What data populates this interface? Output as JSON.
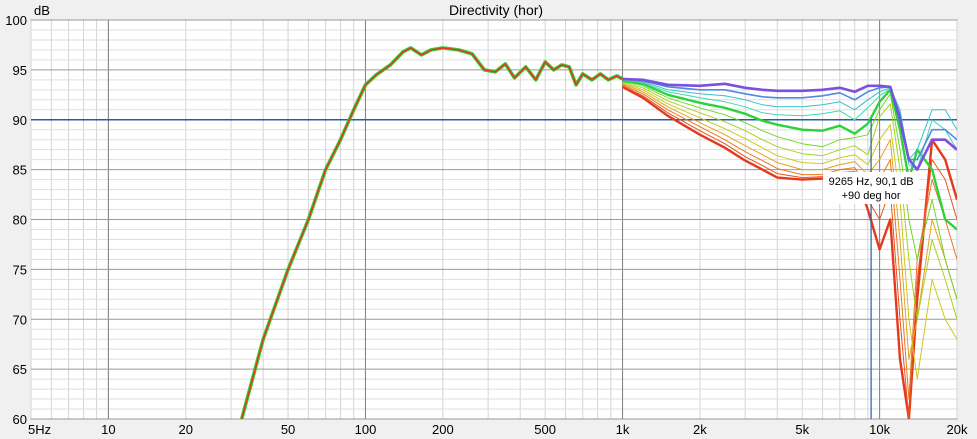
{
  "chart_data": {
    "type": "line",
    "title": "Directivity (hor)",
    "ylabel": "dB",
    "xscale": "log",
    "xlim": [
      5,
      20000
    ],
    "ylim": [
      60,
      100
    ],
    "grid": true,
    "x_tick_labels": [
      {
        "x": 5,
        "label": "5Hz"
      },
      {
        "x": 10,
        "label": "10"
      },
      {
        "x": 20,
        "label": "20"
      },
      {
        "x": 50,
        "label": "50"
      },
      {
        "x": 100,
        "label": "100"
      },
      {
        "x": 200,
        "label": "200"
      },
      {
        "x": 500,
        "label": "500"
      },
      {
        "x": 1000,
        "label": "1k"
      },
      {
        "x": 2000,
        "label": "2k"
      },
      {
        "x": 5000,
        "label": "5k"
      },
      {
        "x": 10000,
        "label": "10k"
      },
      {
        "x": 20000,
        "label": "20k"
      }
    ],
    "y_ticks": [
      60,
      65,
      70,
      75,
      80,
      85,
      90,
      95,
      100
    ],
    "reference_line_y": 90,
    "cursor": {
      "frequency_hz": 9265,
      "level_db": 90.1,
      "label_line1": "9265 Hz, 90,1 dB",
      "label_line2": "+90 deg hor"
    },
    "base_curve": {
      "x": [
        33,
        40,
        50,
        60,
        70,
        80,
        90,
        100,
        110,
        125,
        140,
        150,
        165,
        180,
        200,
        230,
        260,
        290,
        320,
        350,
        380,
        420,
        460,
        500,
        540,
        580,
        620,
        660,
        700,
        760,
        820,
        880,
        950,
        1000
      ],
      "y": [
        60,
        68,
        75,
        80,
        85,
        88,
        91,
        93.5,
        94.5,
        95.5,
        96.8,
        97.2,
        96.5,
        97,
        97.2,
        97,
        96.6,
        95,
        94.8,
        95.6,
        94.2,
        95.3,
        94.0,
        95.8,
        95.0,
        95.5,
        95.3,
        93.5,
        94.6,
        94.0,
        94.6,
        94.0,
        94.4,
        94.1
      ]
    },
    "hf_x": [
      1000,
      1200,
      1500,
      2000,
      2500,
      3000,
      3500,
      4000,
      5000,
      6000,
      7000,
      8000,
      9000,
      10000,
      11000,
      12000,
      13000,
      14000,
      16000,
      18000,
      20000
    ],
    "series": [
      {
        "color": "#7b4fe0",
        "width": 2.6,
        "y": [
          94.1,
          94.0,
          93.5,
          93.4,
          93.6,
          93.2,
          93.0,
          92.9,
          92.9,
          93.0,
          93.2,
          92.8,
          93.4,
          93.4,
          93.3,
          90.0,
          86.0,
          85.0,
          88.0,
          88.0,
          87.0
        ]
      },
      {
        "color": "#4f8ae0",
        "width": 1.6,
        "y": [
          94.1,
          93.9,
          93.3,
          93.0,
          93.0,
          92.6,
          92.3,
          92.2,
          92.2,
          92.4,
          92.7,
          92.0,
          92.8,
          93.2,
          93.3,
          90.5,
          86.0,
          86.0,
          89.0,
          89.0,
          88.0
        ]
      },
      {
        "color": "#36c2c8",
        "width": 1.0,
        "y": [
          94.0,
          93.8,
          93.0,
          92.6,
          92.4,
          92.0,
          91.5,
          91.3,
          91.3,
          91.5,
          91.8,
          91.0,
          92.0,
          92.8,
          93.2,
          91.0,
          86.0,
          87.0,
          91.0,
          91.0,
          89.0
        ]
      },
      {
        "color": "#3fd6b4",
        "width": 1.0,
        "y": [
          94.0,
          93.7,
          92.8,
          92.2,
          91.8,
          91.3,
          90.7,
          90.5,
          90.4,
          90.6,
          90.9,
          90.0,
          91.2,
          92.4,
          93.1,
          90.0,
          85.5,
          85.0,
          90.0,
          89.0,
          87.0
        ]
      },
      {
        "color": "#2ed23a",
        "width": 2.4,
        "y": [
          93.9,
          93.6,
          92.5,
          91.7,
          91.2,
          90.6,
          89.9,
          89.5,
          89.0,
          88.9,
          89.4,
          88.6,
          89.6,
          91.8,
          93.0,
          89.0,
          84.0,
          87.0,
          85.0,
          80.0,
          79.0
        ]
      },
      {
        "color": "#72d62a",
        "width": 1.0,
        "y": [
          93.9,
          93.4,
          92.2,
          91.2,
          90.5,
          89.7,
          88.9,
          88.3,
          87.6,
          87.3,
          88.0,
          88.2,
          88.5,
          91.0,
          92.6,
          87.0,
          80.0,
          76.0,
          82.0,
          76.0,
          72.0
        ]
      },
      {
        "color": "#a6d21e",
        "width": 1.0,
        "y": [
          93.8,
          93.2,
          91.9,
          90.7,
          89.8,
          88.9,
          88.0,
          87.3,
          86.6,
          86.4,
          87.0,
          87.4,
          86.5,
          90.3,
          91.6,
          85.0,
          76.0,
          70.0,
          78.0,
          74.0,
          70.0
        ]
      },
      {
        "color": "#cdc81a",
        "width": 1.0,
        "y": [
          93.7,
          93.0,
          91.6,
          90.2,
          89.1,
          88.1,
          87.2,
          86.4,
          85.7,
          85.6,
          86.2,
          86.5,
          85.5,
          88.0,
          89.5,
          82.0,
          70.0,
          64.0,
          74.0,
          70.0,
          68.0
        ]
      },
      {
        "color": "#e2a41c",
        "width": 1.0,
        "y": [
          93.6,
          92.8,
          91.3,
          89.7,
          88.5,
          87.4,
          86.5,
          85.7,
          85.0,
          85.0,
          85.5,
          85.8,
          84.5,
          86.0,
          88.0,
          78.0,
          66.0,
          70.0,
          80.0,
          76.0,
          72.0
        ]
      },
      {
        "color": "#e8791e",
        "width": 1.0,
        "y": [
          93.5,
          92.6,
          91.0,
          89.3,
          88.0,
          86.8,
          85.9,
          85.1,
          84.5,
          84.5,
          85.0,
          85.2,
          83.0,
          84.0,
          86.0,
          74.0,
          62.0,
          76.0,
          84.0,
          80.0,
          76.0
        ]
      },
      {
        "color": "#e8521f",
        "width": 1.0,
        "y": [
          93.4,
          92.4,
          90.7,
          88.9,
          87.6,
          86.3,
          85.4,
          84.6,
          84.2,
          84.3,
          84.7,
          84.8,
          82.0,
          80.0,
          83.0,
          70.0,
          60.0,
          74.0,
          86.0,
          84.0,
          80.0
        ]
      },
      {
        "color": "#e33a1d",
        "width": 2.4,
        "y": [
          93.3,
          92.2,
          90.4,
          88.5,
          87.2,
          85.9,
          85.0,
          84.2,
          84.0,
          84.1,
          84.5,
          84.6,
          81.0,
          77.0,
          80.0,
          66.0,
          60.0,
          72.0,
          88.0,
          86.0,
          82.0
        ]
      }
    ]
  }
}
